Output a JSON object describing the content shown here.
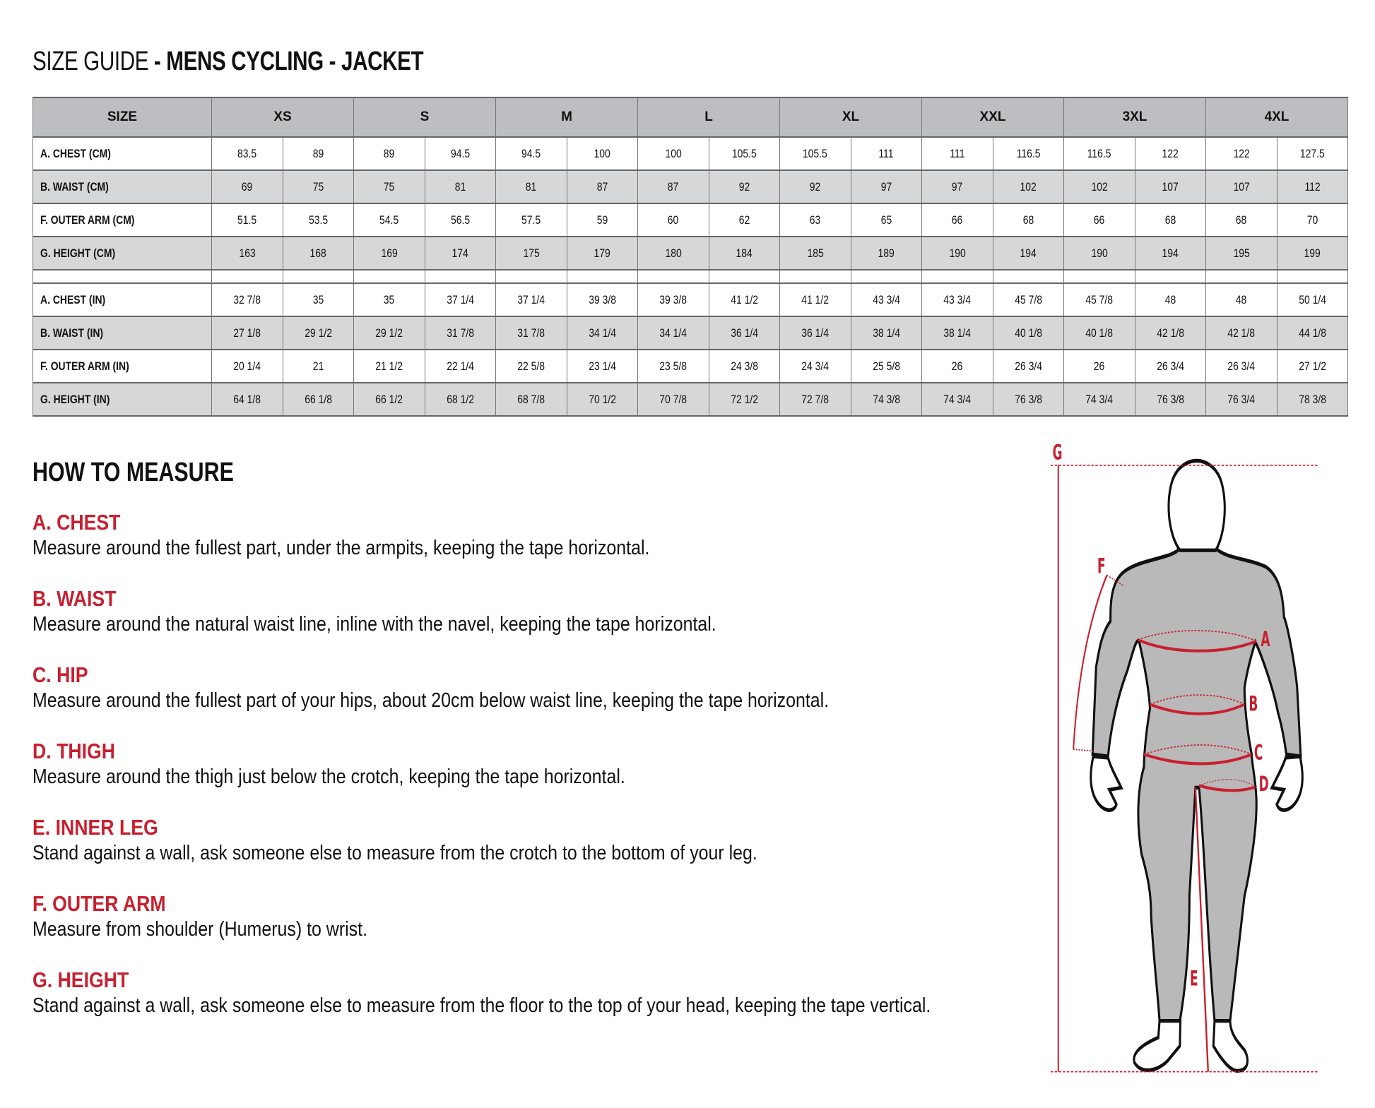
{
  "title": {
    "prefix": "SIZE GUIDE",
    "bold": " - MENS CYCLING - JACKET"
  },
  "table": {
    "header_label": "SIZE",
    "sizes": [
      "XS",
      "S",
      "M",
      "L",
      "XL",
      "XXL",
      "3XL",
      "4XL"
    ],
    "cm_rows": [
      {
        "label": "A. CHEST (CM)",
        "values": [
          "83.5",
          "89",
          "89",
          "94.5",
          "94.5",
          "100",
          "100",
          "105.5",
          "105.5",
          "111",
          "111",
          "116.5",
          "116.5",
          "122",
          "122",
          "127.5"
        ]
      },
      {
        "label": "B. WAIST (CM)",
        "values": [
          "69",
          "75",
          "75",
          "81",
          "81",
          "87",
          "87",
          "92",
          "92",
          "97",
          "97",
          "102",
          "102",
          "107",
          "107",
          "112"
        ]
      },
      {
        "label": "F. OUTER ARM (CM)",
        "values": [
          "51.5",
          "53.5",
          "54.5",
          "56.5",
          "57.5",
          "59",
          "60",
          "62",
          "63",
          "65",
          "66",
          "68",
          "66",
          "68",
          "68",
          "70"
        ]
      },
      {
        "label": "G. HEIGHT (CM)",
        "values": [
          "163",
          "168",
          "169",
          "174",
          "175",
          "179",
          "180",
          "184",
          "185",
          "189",
          "190",
          "194",
          "190",
          "194",
          "195",
          "199"
        ]
      }
    ],
    "in_rows": [
      {
        "label": "A. CHEST (IN)",
        "values": [
          "32 7/8",
          "35",
          "35",
          "37 1/4",
          "37 1/4",
          "39 3/8",
          "39 3/8",
          "41 1/2",
          "41 1/2",
          "43 3/4",
          "43 3/4",
          "45 7/8",
          "45 7/8",
          "48",
          "48",
          "50 1/4"
        ]
      },
      {
        "label": "B. WAIST (IN)",
        "values": [
          "27 1/8",
          "29 1/2",
          "29 1/2",
          "31 7/8",
          "31 7/8",
          "34 1/4",
          "34 1/4",
          "36 1/4",
          "36 1/4",
          "38 1/4",
          "38 1/4",
          "40 1/8",
          "40 1/8",
          "42 1/8",
          "42 1/8",
          "44 1/8"
        ]
      },
      {
        "label": "F. OUTER ARM (IN)",
        "values": [
          "20 1/4",
          "21",
          "21 1/2",
          "22 1/4",
          "22 5/8",
          "23 1/4",
          "23 5/8",
          "24 3/8",
          "24 3/4",
          "25 5/8",
          "26",
          "26 3/4",
          "26",
          "26 3/4",
          "26 3/4",
          "27 1/2"
        ]
      },
      {
        "label": "G. HEIGHT (IN)",
        "values": [
          "64 1/8",
          "66 1/8",
          "66 1/2",
          "68 1/2",
          "68 7/8",
          "70 1/2",
          "70 7/8",
          "72 1/2",
          "72 7/8",
          "74 3/8",
          "74 3/4",
          "76 3/8",
          "74 3/4",
          "76 3/8",
          "76 3/4",
          "78 3/8"
        ]
      }
    ]
  },
  "how_to_measure": {
    "heading": "HOW TO MEASURE",
    "items": [
      {
        "title": "A. CHEST",
        "text": "Measure around the fullest part, under the armpits, keeping the tape horizontal."
      },
      {
        "title": "B. WAIST",
        "text": "Measure around the natural waist line, inline with the navel, keeping the tape horizontal."
      },
      {
        "title": "C. HIP",
        "text": "Measure around the fullest part of your hips, about 20cm below waist line, keeping the tape horizontal."
      },
      {
        "title": "D. THIGH",
        "text": "Measure around the thigh just below the crotch, keeping the tape horizontal."
      },
      {
        "title": "E. INNER LEG",
        "text": "Stand against a wall, ask someone else to measure from the crotch to the bottom of your leg."
      },
      {
        "title": "F. OUTER ARM",
        "text": "Measure from shoulder (Humerus) to wrist."
      },
      {
        "title": "G. HEIGHT",
        "text": "Stand against a wall, ask someone else to measure from the floor to the top of your head, keeping the tape vertical."
      }
    ]
  },
  "figure": {
    "labels": {
      "a": "A",
      "b": "B",
      "c": "C",
      "d": "D",
      "e": "E",
      "f": "F",
      "g": "G"
    },
    "accent_color": "#c8202f",
    "body_color": "#b9b9b9"
  }
}
